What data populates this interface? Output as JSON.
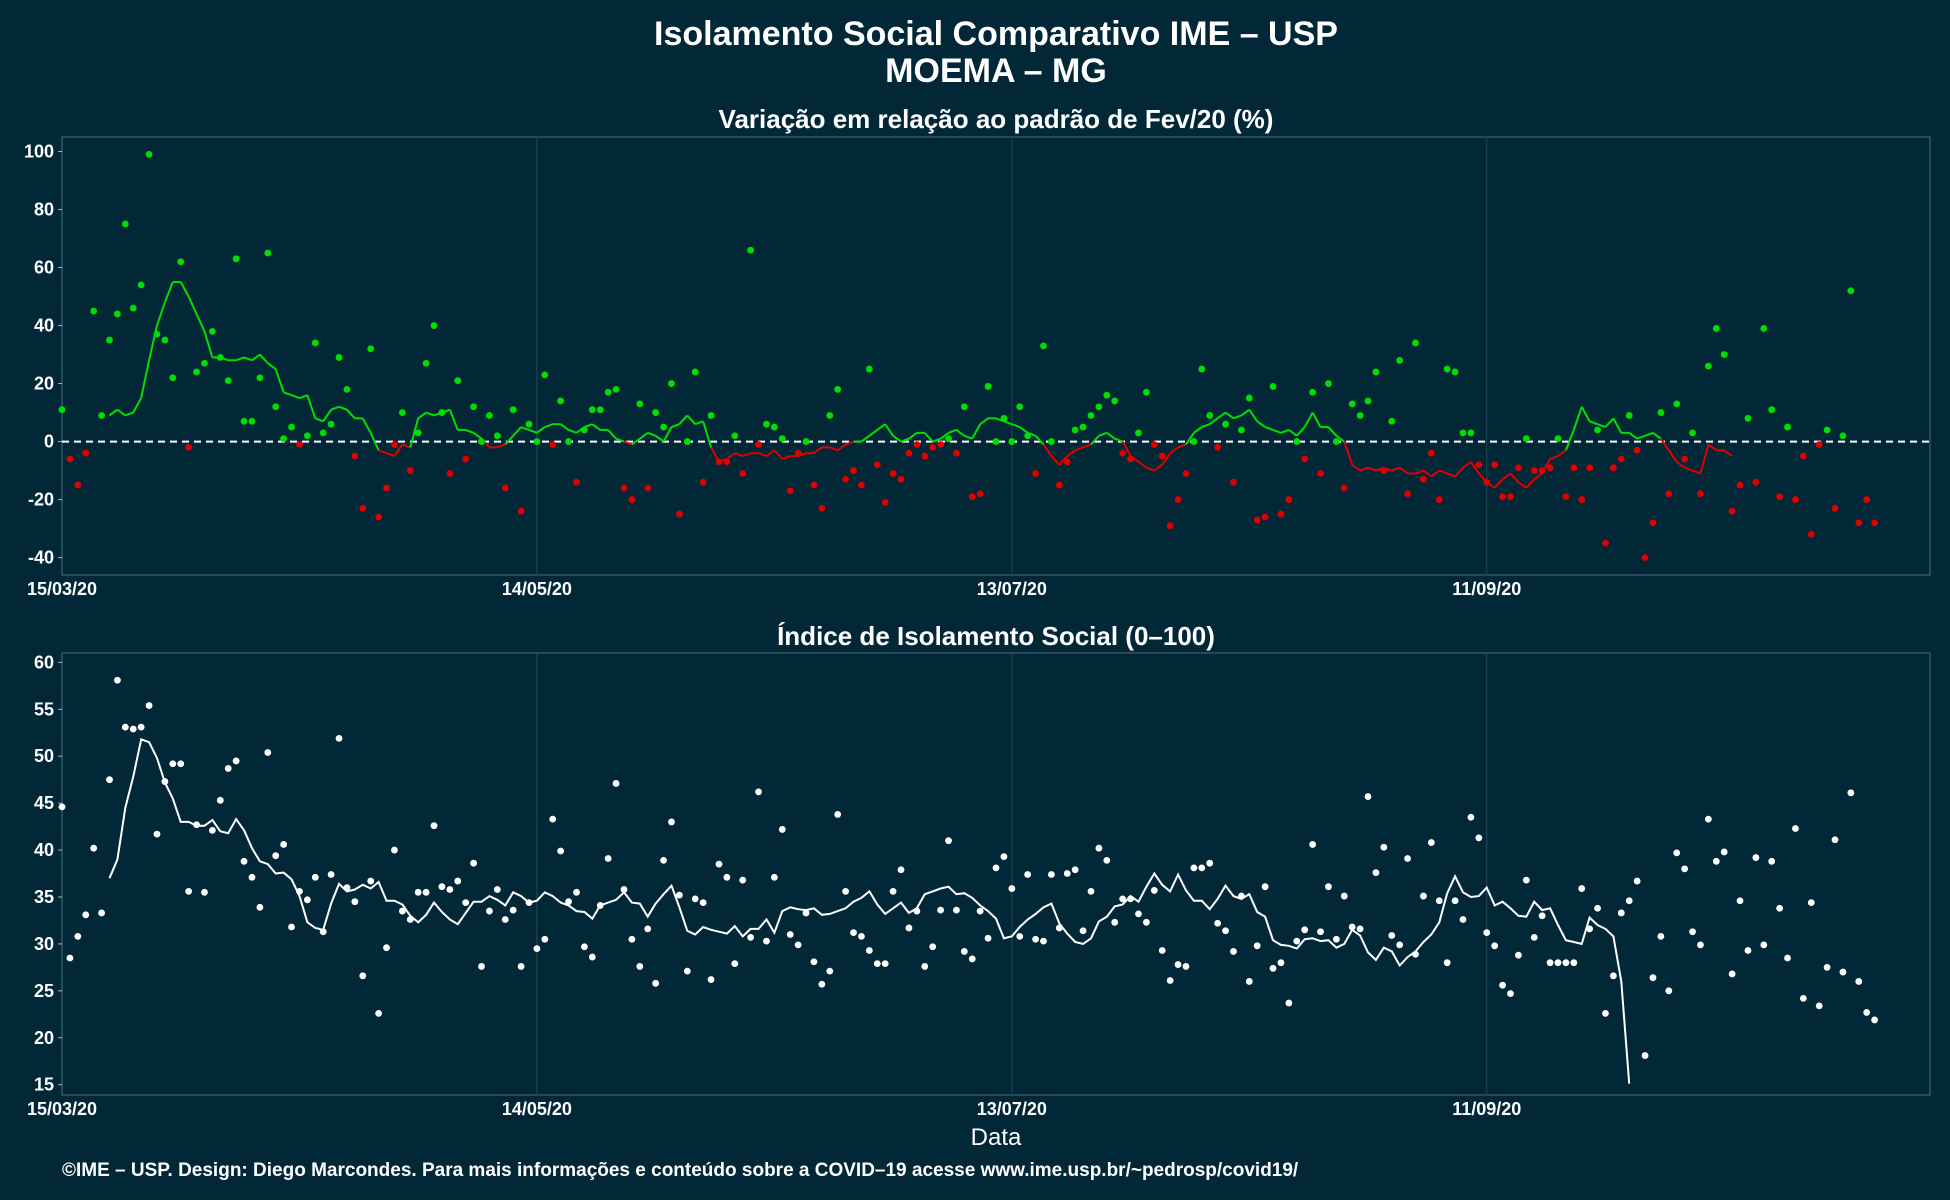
{
  "title": "Isolamento Social Comparativo IME – USP",
  "subtitle": "MOEMA – MG",
  "footer": "©IME – USP. Design: Diego Marcondes. Para mais informações e conteúdo sobre a COVID–19 acesse www.ime.usp.br/~pedrosp/covid19/",
  "colors": {
    "background": "#022838",
    "above": "#00e000",
    "below": "#e00000",
    "index": "#ffffff",
    "grid": "#244a58"
  },
  "chart_data": [
    {
      "type": "scatter",
      "title": "Variação em relação ao padrão de Fev/20 (%)",
      "xlabel": "",
      "x_ticks": [
        "15/03/20",
        "14/05/20",
        "13/07/20",
        "11/09/20"
      ],
      "x_range_days": [
        0,
        236
      ],
      "y_ticks": [
        100,
        80,
        60,
        40,
        20,
        0,
        -20,
        -40
      ],
      "ylim": [
        -46,
        105
      ],
      "reference_line": 0,
      "point_colors": "green when value > 0, red when value < 0",
      "series": [
        {
          "values": [
            11,
            -6,
            -15,
            -4,
            45,
            9,
            35,
            44,
            75,
            46,
            54,
            99,
            37,
            35,
            22,
            62,
            -2,
            24,
            27,
            38,
            29,
            21,
            63,
            7,
            7,
            22,
            65,
            12,
            1,
            5,
            -1,
            2,
            34,
            3,
            6,
            29,
            18,
            -5,
            -23,
            32,
            -26,
            -16,
            -1,
            10,
            -10,
            3,
            27,
            40,
            10,
            -11,
            21,
            -6,
            12,
            0,
            9,
            2,
            -16,
            11,
            -24,
            6,
            0,
            23,
            -1,
            14,
            0,
            -14,
            4,
            11,
            11,
            17,
            18,
            -16,
            -20,
            13,
            -16,
            10,
            5,
            20,
            -25,
            0,
            24,
            -14,
            9,
            -7,
            -7,
            2,
            -11,
            66,
            -1,
            6,
            5,
            1,
            -17,
            -4,
            0,
            -15,
            -23,
            9,
            18,
            -13,
            -10,
            -15,
            25,
            -8,
            -21,
            -11,
            -13,
            -4,
            -1,
            -5,
            -2,
            -1,
            1,
            -4,
            12,
            -19,
            -18,
            19,
            0,
            8,
            0,
            12,
            2,
            -11,
            33,
            0,
            -15,
            -7,
            4,
            5,
            9,
            12,
            16,
            14,
            -4,
            -6,
            3,
            17,
            -1,
            -5,
            -29,
            -20,
            -11,
            0,
            25,
            9,
            -2,
            6,
            -14,
            4,
            15,
            -27,
            -26,
            19,
            -25,
            -20,
            0,
            -6,
            17,
            -11,
            20,
            0,
            -16,
            13,
            9,
            14,
            24,
            -10,
            7,
            28,
            -18,
            34,
            -13,
            -4,
            -20,
            25,
            24,
            3,
            3,
            -8,
            -14,
            -8,
            -19,
            -19,
            -9,
            1,
            -10,
            -10,
            -9,
            1,
            -19,
            -9,
            -20,
            -9,
            4,
            -35,
            -9,
            -6,
            9,
            -3,
            -40,
            -28,
            10,
            -18,
            13,
            -6,
            3,
            -18,
            26,
            39,
            30,
            -24,
            -15,
            8,
            -14,
            39,
            11,
            -19,
            5,
            -20,
            -5,
            -32,
            -1,
            4,
            -23,
            2,
            52,
            -28,
            -20,
            -28
          ]
        }
      ],
      "smoothed_series": [
        9,
        11,
        9,
        10,
        15,
        28,
        40,
        48,
        55,
        55,
        50,
        44,
        38,
        29,
        29,
        28,
        28,
        29,
        28,
        30,
        27,
        25,
        17,
        16,
        15,
        16,
        8,
        7,
        11,
        12,
        11,
        8,
        8,
        3,
        -3,
        -4,
        -5,
        -1,
        -2,
        8,
        10,
        9,
        10,
        11,
        4,
        4,
        3,
        1,
        -2,
        -2,
        -1,
        2,
        5,
        4,
        3,
        5,
        6,
        6,
        4,
        3,
        5,
        6,
        4,
        4,
        1,
        0,
        -1,
        1,
        3,
        2,
        0,
        5,
        6,
        9,
        6,
        7,
        -2,
        -7,
        -6,
        -4,
        -5,
        -4,
        -4,
        -5,
        -3,
        -6,
        -5,
        -5,
        -4,
        -4,
        -2,
        -2,
        -3,
        -1,
        0,
        0,
        2,
        4,
        6,
        2,
        0,
        1,
        3,
        3,
        0,
        1,
        3,
        4,
        2,
        1,
        6,
        8,
        8,
        7,
        6,
        5,
        3,
        2,
        -1,
        -5,
        -8,
        -5,
        -3,
        -2,
        -1,
        2,
        3,
        1,
        0,
        -5,
        -7,
        -9,
        -10,
        -8,
        -4,
        -2,
        -1,
        3,
        5,
        6,
        8,
        10,
        8,
        9,
        11,
        7,
        5,
        4,
        3,
        4,
        2,
        5,
        10,
        5,
        5,
        2,
        0,
        -8,
        -10,
        -9,
        -10,
        -9,
        -10,
        -9,
        -11,
        -11,
        -10,
        -12,
        -10,
        -11,
        -12,
        -9,
        -7,
        -11,
        -14,
        -16,
        -13,
        -11,
        -14,
        -16,
        -13,
        -11,
        -6,
        -5,
        -3,
        4,
        12,
        7,
        6,
        5,
        8,
        3,
        3,
        1,
        2,
        3,
        1,
        -3,
        -7,
        -9,
        -10,
        -11,
        -1,
        -3,
        -3,
        -5
      ]
    },
    {
      "type": "scatter",
      "title": "Índice de Isolamento Social (0–100)",
      "xlabel": "Data",
      "x_ticks": [
        "15/03/20",
        "14/05/20",
        "13/07/20",
        "11/09/20"
      ],
      "x_range_days": [
        0,
        236
      ],
      "y_ticks": [
        60,
        55,
        50,
        45,
        40,
        35,
        30,
        25,
        20,
        15
      ],
      "ylim": [
        13.9,
        61
      ],
      "series": [
        {
          "values": [
            44.6,
            28.5,
            30.8,
            33.1,
            40.2,
            33.3,
            47.5,
            58.1,
            53.1,
            52.9,
            53.1,
            55.4,
            41.7,
            47.3,
            49.2,
            49.2,
            35.6,
            42.7,
            35.5,
            42.1,
            45.3,
            48.7,
            49.5,
            38.8,
            37.1,
            33.9,
            50.4,
            39.4,
            40.6,
            31.8,
            35.6,
            34.7,
            37.1,
            31.3,
            37.4,
            51.9,
            36,
            34.5,
            26.6,
            36.7,
            22.6,
            29.6,
            40,
            33.5,
            32.6,
            35.5,
            35.5,
            42.6,
            36.1,
            35.8,
            36.7,
            34.4,
            38.6,
            27.6,
            33.5,
            35.8,
            32.6,
            33.6,
            27.6,
            34.4,
            29.5,
            30.5,
            43.3,
            39.9,
            34.5,
            35.5,
            29.7,
            28.6,
            34.1,
            39.1,
            47.1,
            35.8,
            30.5,
            27.6,
            31.6,
            25.8,
            38.9,
            43,
            35.2,
            27.1,
            34.8,
            34.4,
            26.2,
            38.5,
            37.1,
            27.9,
            36.8,
            30.7,
            46.2,
            30.3,
            37.1,
            42.2,
            31,
            29.9,
            33.3,
            28.1,
            25.7,
            27.1,
            43.8,
            35.6,
            31.2,
            30.8,
            29.3,
            27.9,
            27.9,
            35.6,
            37.9,
            31.7,
            33.5,
            27.6,
            29.7,
            33.6,
            41,
            33.6,
            29.2,
            28.4,
            33.5,
            30.6,
            38.1,
            39.3,
            35.9,
            30.8,
            37.4,
            30.5,
            30.3,
            37.4,
            31.7,
            37.5,
            37.9,
            31.4,
            35.6,
            40.2,
            38.9,
            32.3,
            34.8,
            34.8,
            33.2,
            32.3,
            35.7,
            29.3,
            26.1,
            27.8,
            27.6,
            38.1,
            38.1,
            38.6,
            32.2,
            31.4,
            29.2,
            35.1,
            26,
            29.8,
            36.1,
            27.4,
            28,
            23.7,
            30.3,
            31.5,
            40.6,
            31.3,
            36.1,
            30.5,
            35.1,
            31.8,
            31.6,
            45.7,
            37.6,
            40.3,
            30.9,
            29.9,
            39.1,
            28.9,
            35.1,
            40.8,
            34.6,
            28,
            34.6,
            32.6,
            43.5,
            41.3,
            31.2,
            29.8,
            25.6,
            24.7,
            28.8,
            36.8,
            30.7,
            33,
            28,
            28,
            28,
            28,
            35.9,
            31.6,
            33.8,
            22.6,
            26.6,
            33.3,
            34.6,
            36.7,
            18.1,
            26.4,
            30.8,
            25,
            39.7,
            38,
            31.3,
            29.9,
            43.3,
            38.8,
            39.8,
            26.8,
            34.6,
            29.3,
            39.2,
            29.9,
            38.8,
            33.8,
            28.5,
            42.3,
            24.2,
            34.4,
            23.4,
            27.5,
            41.1,
            27,
            46.1,
            26,
            22.7,
            21.9
          ]
        }
      ],
      "smoothed_series": [
        37,
        39,
        44.5,
        47.8,
        51.8,
        51.5,
        49.8,
        47.2,
        45.5,
        43,
        43,
        42.6,
        42.6,
        43.2,
        42,
        41.8,
        43.3,
        42.1,
        40.2,
        38.8,
        38.5,
        37.5,
        37.6,
        36.9,
        35.1,
        32.3,
        31.7,
        31.5,
        34.3,
        36.4,
        35.6,
        35.8,
        36.3,
        35.9,
        36.6,
        34.6,
        34.6,
        34.2,
        33,
        32.3,
        33.1,
        34.4,
        33.4,
        32.6,
        32.1,
        33.3,
        34.5,
        34.5,
        35.1,
        34.7,
        34.1,
        35.5,
        35.1,
        34.4,
        34.6,
        35.5,
        35.1,
        34.4,
        34.1,
        33.5,
        33.4,
        32.7,
        34.1,
        34.4,
        34.7,
        35.5,
        34.4,
        34.3,
        32.9,
        34.3,
        35.3,
        36.2,
        33.9,
        31.4,
        31,
        31.8,
        31.5,
        31.3,
        31.1,
        31.9,
        30.8,
        31.6,
        31.6,
        32.6,
        31.2,
        33.5,
        33.9,
        33.7,
        33.6,
        33.8,
        33.1,
        33.2,
        33.5,
        33.8,
        34.5,
        34.9,
        35.6,
        34.2,
        33.2,
        33.8,
        34.4,
        33.3,
        33.8,
        35.3,
        35.6,
        35.9,
        36.1,
        35.3,
        35.4,
        34.9,
        34.1,
        33.5,
        32.7,
        30.6,
        30.8,
        31.8,
        32.6,
        33.2,
        33.9,
        34.3,
        32.2,
        31.1,
        30.2,
        30,
        30.6,
        32.4,
        32.9,
        34,
        34.2,
        35.1,
        34.5,
        36.1,
        37.5,
        36.3,
        35.6,
        37.4,
        35.7,
        34.6,
        34.6,
        33.7,
        34.8,
        36.2,
        35.1,
        34.8,
        35.3,
        33.4,
        32.9,
        30.4,
        29.9,
        29.8,
        29.5,
        30.5,
        30.6,
        30.3,
        30.4,
        29.6,
        30,
        31.5,
        30.9,
        29.1,
        28.3,
        29.6,
        29.2,
        27.7,
        28.6,
        29.2,
        30.2,
        31,
        32.3,
        35.4,
        37.2,
        35.5,
        35,
        35.1,
        36,
        34.1,
        34.5,
        33.8,
        33,
        32.9,
        34.5,
        33.6,
        33.8,
        32,
        30.4,
        30.2,
        30,
        32.8,
        32,
        31.6,
        30.8,
        26,
        15.1
      ]
    }
  ]
}
